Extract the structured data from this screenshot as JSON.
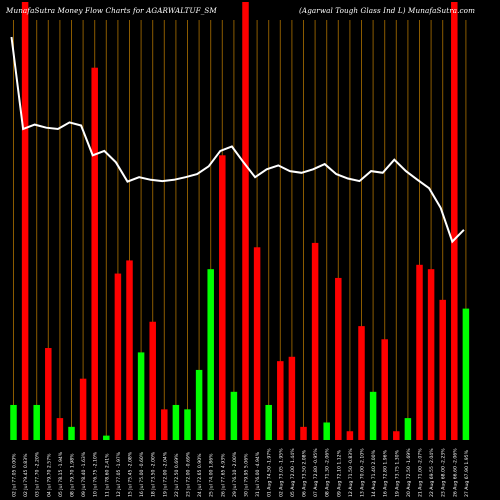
{
  "header": {
    "left": "MunafaSutra  Money Flow  Charts for AGARWALTUF_SM",
    "right": "(Agarwal Tough Glass Ind L) MunafaSutra.com"
  },
  "colors": {
    "background": "#000000",
    "up": "#00ff00",
    "down": "#ff0000",
    "grid": "#8a5a00",
    "line": "#ffffff"
  },
  "chart_data": {
    "type": "bar",
    "x_label_format": "dd Mon price % change",
    "grid": "vertical lines per bar",
    "bars": [
      {
        "label": "02 Jul 77.05 0.00%",
        "color": "green",
        "height": 0.08
      },
      {
        "label": "02 Jul 79.45 0.83%",
        "color": "red",
        "height": 1.0
      },
      {
        "label": "03 Jul 77.70 -2.20%",
        "color": "green",
        "height": 0.08
      },
      {
        "label": "04 Jul 79.70 2.57%",
        "color": "red",
        "height": 0.21
      },
      {
        "label": "05 Jul 78.15 -1.94%",
        "color": "red",
        "height": 0.05
      },
      {
        "label": "08 Jul 79.70 1.98%",
        "color": "green",
        "height": 0.03
      },
      {
        "label": "09 Jul 78.40 -1.63%",
        "color": "red",
        "height": 0.14
      },
      {
        "label": "10 Jul 76.75 -2.10%",
        "color": "red",
        "height": 0.85
      },
      {
        "label": "11 Jul 78.60 2.41%",
        "color": "green",
        "height": 0.01
      },
      {
        "label": "12 Jul 77.05 -1.97%",
        "color": "red",
        "height": 0.38
      },
      {
        "label": "15 Jul 75.45 -2.08%",
        "color": "red",
        "height": 0.41
      },
      {
        "label": "16 Jul 75.00 -0.60%",
        "color": "green",
        "height": 0.2
      },
      {
        "label": "18 Jul 73.50 -2.00%",
        "color": "red",
        "height": 0.27
      },
      {
        "label": "19 Jul 72.00 -2.04%",
        "color": "red",
        "height": 0.07
      },
      {
        "label": "22 Jul 72.50 0.69%",
        "color": "green",
        "height": 0.08
      },
      {
        "label": "23 Jul 72.00 -0.69%",
        "color": "green",
        "height": 0.07
      },
      {
        "label": "24 Jul 72.65 0.90%",
        "color": "green",
        "height": 0.16
      },
      {
        "label": "25 Jul 74.00 1.86%",
        "color": "green",
        "height": 0.39
      },
      {
        "label": "26 Jul 77.65 4.93%",
        "color": "red",
        "height": 0.65
      },
      {
        "label": "29 Jul 76.10 -2.00%",
        "color": "green",
        "height": 0.11
      },
      {
        "label": "30 Jul 79.95 5.06%",
        "color": "red",
        "height": 1.0
      },
      {
        "label": "31 Jul 76.00 -4.94%",
        "color": "red",
        "height": 0.44
      },
      {
        "label": "01 Aug 74.50 -1.97%",
        "color": "green",
        "height": 0.08
      },
      {
        "label": "02 Aug 73.05 -1.95%",
        "color": "red",
        "height": 0.18
      },
      {
        "label": "05 Aug 72.00 -1.44%",
        "color": "red",
        "height": 0.19
      },
      {
        "label": "06 Aug 73.50 2.08%",
        "color": "red",
        "height": 0.03
      },
      {
        "label": "07 Aug 72.80 -0.95%",
        "color": "red",
        "height": 0.45
      },
      {
        "label": "08 Aug 71.30 -2.06%",
        "color": "green",
        "height": 0.04
      },
      {
        "label": "09 Aug 72.10 1.12%",
        "color": "red",
        "height": 0.37
      },
      {
        "label": "12 Aug 71.50 -0.83%",
        "color": "red",
        "height": 0.02
      },
      {
        "label": "13 Aug 70.00 -2.10%",
        "color": "red",
        "height": 0.26
      },
      {
        "label": "14 Aug 71.40 2.00%",
        "color": "green",
        "height": 0.11
      },
      {
        "label": "16 Aug 72.80 1.96%",
        "color": "red",
        "height": 0.23
      },
      {
        "label": "19 Aug 73.75 1.30%",
        "color": "red",
        "height": 0.02
      },
      {
        "label": "20 Aug 72.50 -1.69%",
        "color": "green",
        "height": 0.05
      },
      {
        "label": "21 Aug 71.00 -2.07%",
        "color": "red",
        "height": 0.4
      },
      {
        "label": "22 Aug 69.55 -2.04%",
        "color": "red",
        "height": 0.39
      },
      {
        "label": "23 Aug 68.00 -2.23%",
        "color": "red",
        "height": 0.32
      },
      {
        "label": "26 Aug 66.60 -2.06%",
        "color": "red",
        "height": 1.0
      },
      {
        "label": "27 Aug 67.90 1.95%",
        "color": "green",
        "height": 0.3
      }
    ],
    "money_flow_line": [
      0.92,
      0.71,
      0.72,
      0.713,
      0.71,
      0.725,
      0.718,
      0.65,
      0.66,
      0.634,
      0.59,
      0.6,
      0.594,
      0.591,
      0.594,
      0.6,
      0.607,
      0.625,
      0.66,
      0.67,
      0.634,
      0.6,
      0.618,
      0.627,
      0.614,
      0.61,
      0.618,
      0.63,
      0.607,
      0.597,
      0.591,
      0.614,
      0.61,
      0.64,
      0.614,
      0.594,
      0.575,
      0.53,
      0.453,
      0.48
    ]
  }
}
